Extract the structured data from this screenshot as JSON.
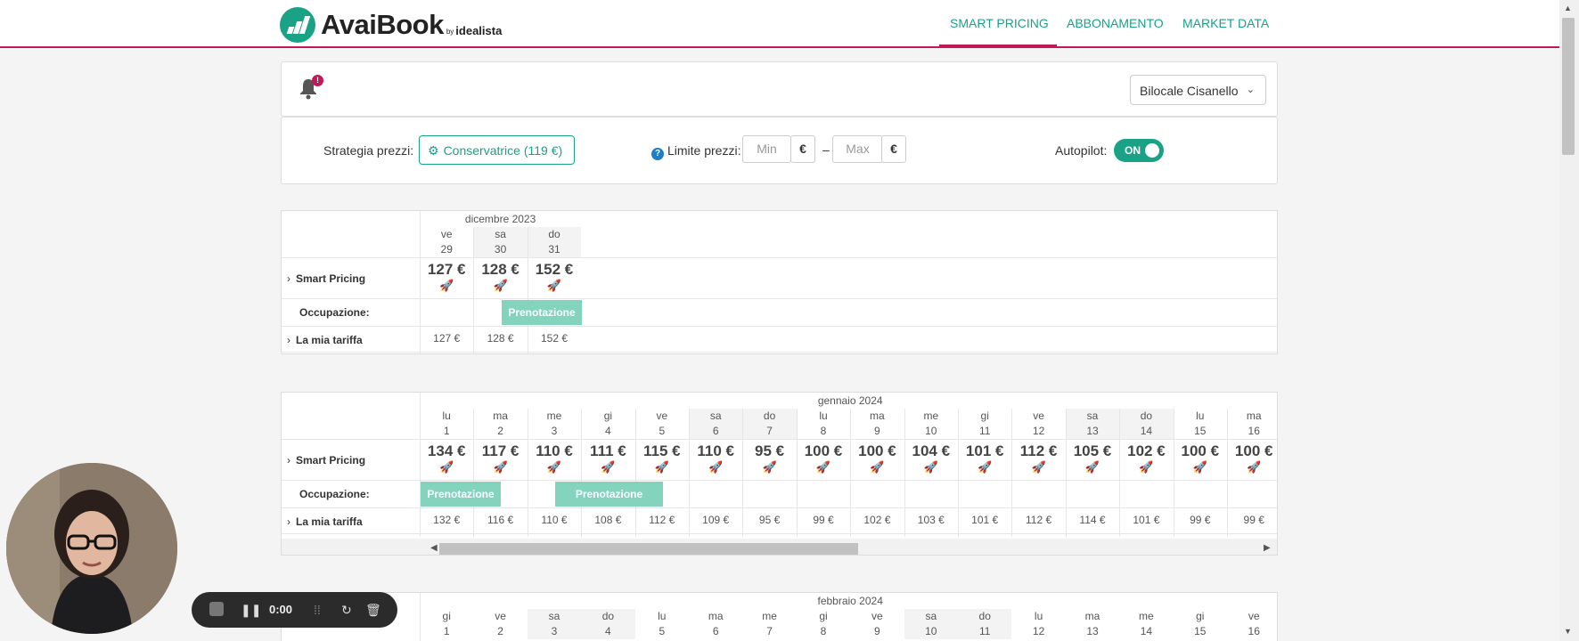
{
  "header": {
    "logo_text": "AvaiBook",
    "logo_by": "by",
    "logo_sub": "idealista",
    "nav": [
      {
        "label": "SMART PRICING",
        "active": true
      },
      {
        "label": "ABBONAMENTO",
        "active": false
      },
      {
        "label": "MARKET DATA",
        "active": false
      }
    ],
    "accent_color": "#1aa286",
    "brand_color": "#c2185b"
  },
  "top_panel": {
    "notification_badge": "!",
    "property_select": "Bilocale Cisanello"
  },
  "settings": {
    "strategy_label": "Strategia prezzi:",
    "strategy_value": "Conservatrice (119 €)",
    "limit_label": "Limite prezzi:",
    "help_icon": "?",
    "min_placeholder": "Min",
    "max_placeholder": "Max",
    "currency": "€",
    "dash": "–",
    "autopilot_label": "Autopilot:",
    "autopilot_state": "ON"
  },
  "row_labels": {
    "smart_pricing": "Smart Pricing",
    "occupancy": "Occupazione:",
    "my_rate": "La mia tariffa",
    "booking": "Prenotazione"
  },
  "calendars": [
    {
      "month": "dicembre 2023",
      "days": [
        {
          "dow": "ve",
          "day": "29",
          "smart": "127 €",
          "rate": "127 €",
          "weekend": false
        },
        {
          "dow": "sa",
          "day": "30",
          "smart": "128 €",
          "rate": "128 €",
          "weekend": true
        },
        {
          "dow": "do",
          "day": "31",
          "smart": "152 €",
          "rate": "152 €",
          "weekend": true
        }
      ]
    },
    {
      "month": "gennaio 2024",
      "days": [
        {
          "dow": "lu",
          "day": "1",
          "smart": "134 €",
          "rate": "132 €",
          "weekend": false
        },
        {
          "dow": "ma",
          "day": "2",
          "smart": "117 €",
          "rate": "116 €",
          "weekend": false
        },
        {
          "dow": "me",
          "day": "3",
          "smart": "110 €",
          "rate": "110 €",
          "weekend": false
        },
        {
          "dow": "gi",
          "day": "4",
          "smart": "111 €",
          "rate": "108 €",
          "weekend": false
        },
        {
          "dow": "ve",
          "day": "5",
          "smart": "115 €",
          "rate": "112 €",
          "weekend": false
        },
        {
          "dow": "sa",
          "day": "6",
          "smart": "110 €",
          "rate": "109 €",
          "weekend": true
        },
        {
          "dow": "do",
          "day": "7",
          "smart": "95 €",
          "rate": "95 €",
          "weekend": true
        },
        {
          "dow": "lu",
          "day": "8",
          "smart": "100 €",
          "rate": "99 €",
          "weekend": false
        },
        {
          "dow": "ma",
          "day": "9",
          "smart": "100 €",
          "rate": "102 €",
          "weekend": false
        },
        {
          "dow": "me",
          "day": "10",
          "smart": "104 €",
          "rate": "103 €",
          "weekend": false
        },
        {
          "dow": "gi",
          "day": "11",
          "smart": "101 €",
          "rate": "101 €",
          "weekend": false
        },
        {
          "dow": "ve",
          "day": "12",
          "smart": "112 €",
          "rate": "112 €",
          "weekend": false
        },
        {
          "dow": "sa",
          "day": "13",
          "smart": "105 €",
          "rate": "114 €",
          "weekend": true
        },
        {
          "dow": "do",
          "day": "14",
          "smart": "102 €",
          "rate": "101 €",
          "weekend": true
        },
        {
          "dow": "lu",
          "day": "15",
          "smart": "100 €",
          "rate": "99 €",
          "weekend": false
        },
        {
          "dow": "ma",
          "day": "16",
          "smart": "100 €",
          "rate": "99 €",
          "weekend": false
        }
      ]
    },
    {
      "month": "febbraio 2024",
      "days": [
        {
          "dow": "gi",
          "day": "1",
          "weekend": false
        },
        {
          "dow": "ve",
          "day": "2",
          "weekend": false
        },
        {
          "dow": "sa",
          "day": "3",
          "weekend": true
        },
        {
          "dow": "do",
          "day": "4",
          "weekend": true
        },
        {
          "dow": "lu",
          "day": "5",
          "weekend": false
        },
        {
          "dow": "ma",
          "day": "6",
          "weekend": false
        },
        {
          "dow": "me",
          "day": "7",
          "weekend": false
        },
        {
          "dow": "gi",
          "day": "8",
          "weekend": false
        },
        {
          "dow": "ve",
          "day": "9",
          "weekend": false
        },
        {
          "dow": "sa",
          "day": "10",
          "weekend": true
        },
        {
          "dow": "do",
          "day": "11",
          "weekend": true
        },
        {
          "dow": "lu",
          "day": "12",
          "weekend": false
        },
        {
          "dow": "ma",
          "day": "13",
          "weekend": false
        },
        {
          "dow": "me",
          "day": "14",
          "weekend": false
        },
        {
          "dow": "gi",
          "day": "15",
          "weekend": false
        },
        {
          "dow": "ve",
          "day": "16",
          "weekend": false
        }
      ]
    }
  ],
  "recorder": {
    "time": "0:00"
  }
}
